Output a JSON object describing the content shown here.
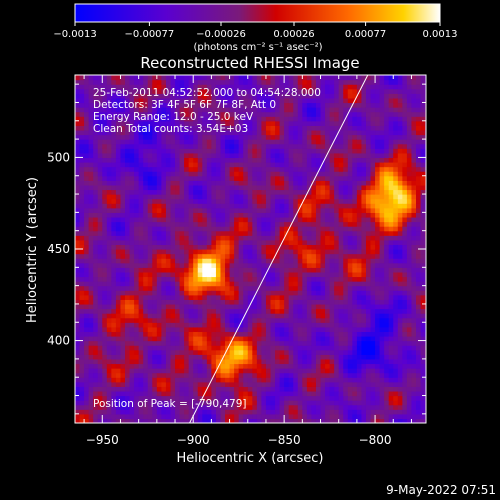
{
  "colorbar": {
    "ticks": [
      "-0.0013",
      "-0.00077",
      "-0.00026",
      "0.00026",
      "0.00077",
      "0.0013"
    ],
    "units": "(photons cm⁻² s⁻¹ asec⁻²)"
  },
  "chart_data": {
    "type": "heatmap",
    "title": "Reconstructed RHESSI Image",
    "xlabel": "Heliocentric X (arcsec)",
    "ylabel": "Heliocentric Y (arcsec)",
    "xlim": [
      -965,
      -772
    ],
    "ylim": [
      355,
      545
    ],
    "x_ticks": [
      -950,
      -900,
      -850,
      -800
    ],
    "x_tick_labels": [
      "−950",
      "−900",
      "−850",
      "−800"
    ],
    "y_ticks": [
      400,
      450,
      500
    ],
    "y_tick_labels": [
      "400",
      "450",
      "500"
    ],
    "color_range": [
      -0.0013,
      0.0013
    ],
    "colormap": "blue-purple-red-yellow-white",
    "annotations": [
      "25-Feb-2011 04:52:52.000 to 04:54:28.000",
      "Detectors: 3F 4F 5F 6F 7F 8F, Att 0",
      "Energy Range: 12.0 - 25.0 keV",
      "Clean     Total counts: 3.54E+03"
    ],
    "peak_label": "Position of Peak = [-790,479]",
    "peak_position": [
      -790,
      479
    ],
    "bright_sources": [
      {
        "x": -790,
        "y": 479,
        "value": 0.0013
      },
      {
        "x": -893,
        "y": 440,
        "value": 0.0011
      },
      {
        "x": -880,
        "y": 390,
        "value": 0.00095
      }
    ],
    "limb_line": {
      "x": [
        -902,
        -804
      ],
      "y": [
        355,
        545
      ]
    }
  },
  "footer": {
    "date": "9-May-2022 07:51"
  }
}
